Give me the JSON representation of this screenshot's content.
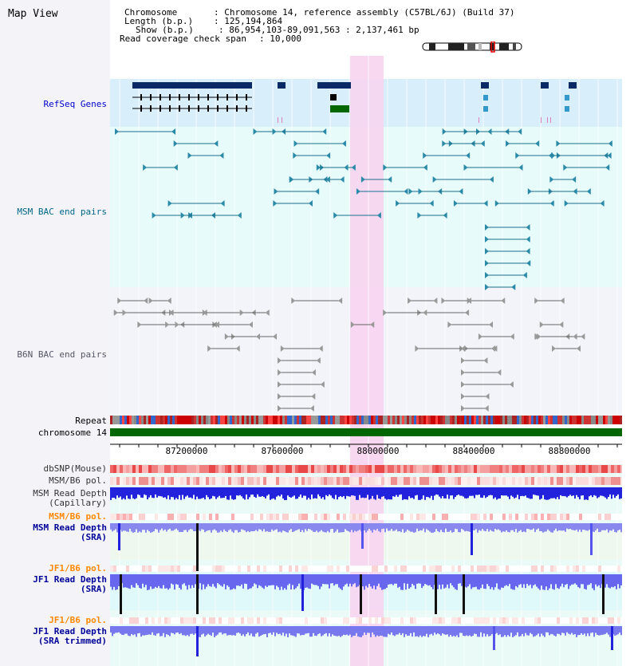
{
  "title": "Map View",
  "info": {
    "chromosome_key": "Chromosome    ",
    "chromosome_val": ": Chromosome 14, reference assembly (C57BL/6J) (Build 37)",
    "length_key": "Length (b.p.)",
    "length_val": ": 125,194,864",
    "show_key": "Show (b.p.)",
    "show_val": ": 86,954,103-89,091,563 : 2,137,461 bp",
    "span_key": "Read coverage check span",
    "span_val": ": 10,000"
  },
  "tracks": {
    "refseq": "RefSeq Genes",
    "msm_bac": "MSM BAC end pairs",
    "b6n_bac": "B6N BAC end pairs",
    "repeat": "Repeat",
    "chromosome": "chromosome 14",
    "dbsnp": "dbSNP(Mouse)",
    "msm_b6_pol": "MSM/B6 pol.",
    "msm_depth_cap_1": "MSM Read Depth",
    "msm_depth_cap_2": "(Capillary)",
    "msm_b6_pol_2": "MSM/B6 pol.",
    "msm_depth_sra_1": "MSM Read Depth",
    "msm_depth_sra_2": "(SRA)",
    "jf1_b6_pol": "JF1/B6 pol.",
    "jf1_depth_sra_1": "JF1 Read Depth",
    "jf1_depth_sra_2": "(SRA)",
    "jf1_b6_pol_2": "JF1/B6 pol.",
    "jf1_depth_trim_1": "JF1 Read Depth",
    "jf1_depth_trim_2": "(SRA trimmed)"
  },
  "axis": {
    "ticks": [
      "87200000",
      "87600000",
      "88000000",
      "88400000",
      "88800000"
    ]
  },
  "colors": {
    "refseq_label": "#0000cc",
    "msm_label": "#006688",
    "orange_label": "#ff8800",
    "blue_label": "#000099",
    "highlight": "#f7d4f0"
  }
}
